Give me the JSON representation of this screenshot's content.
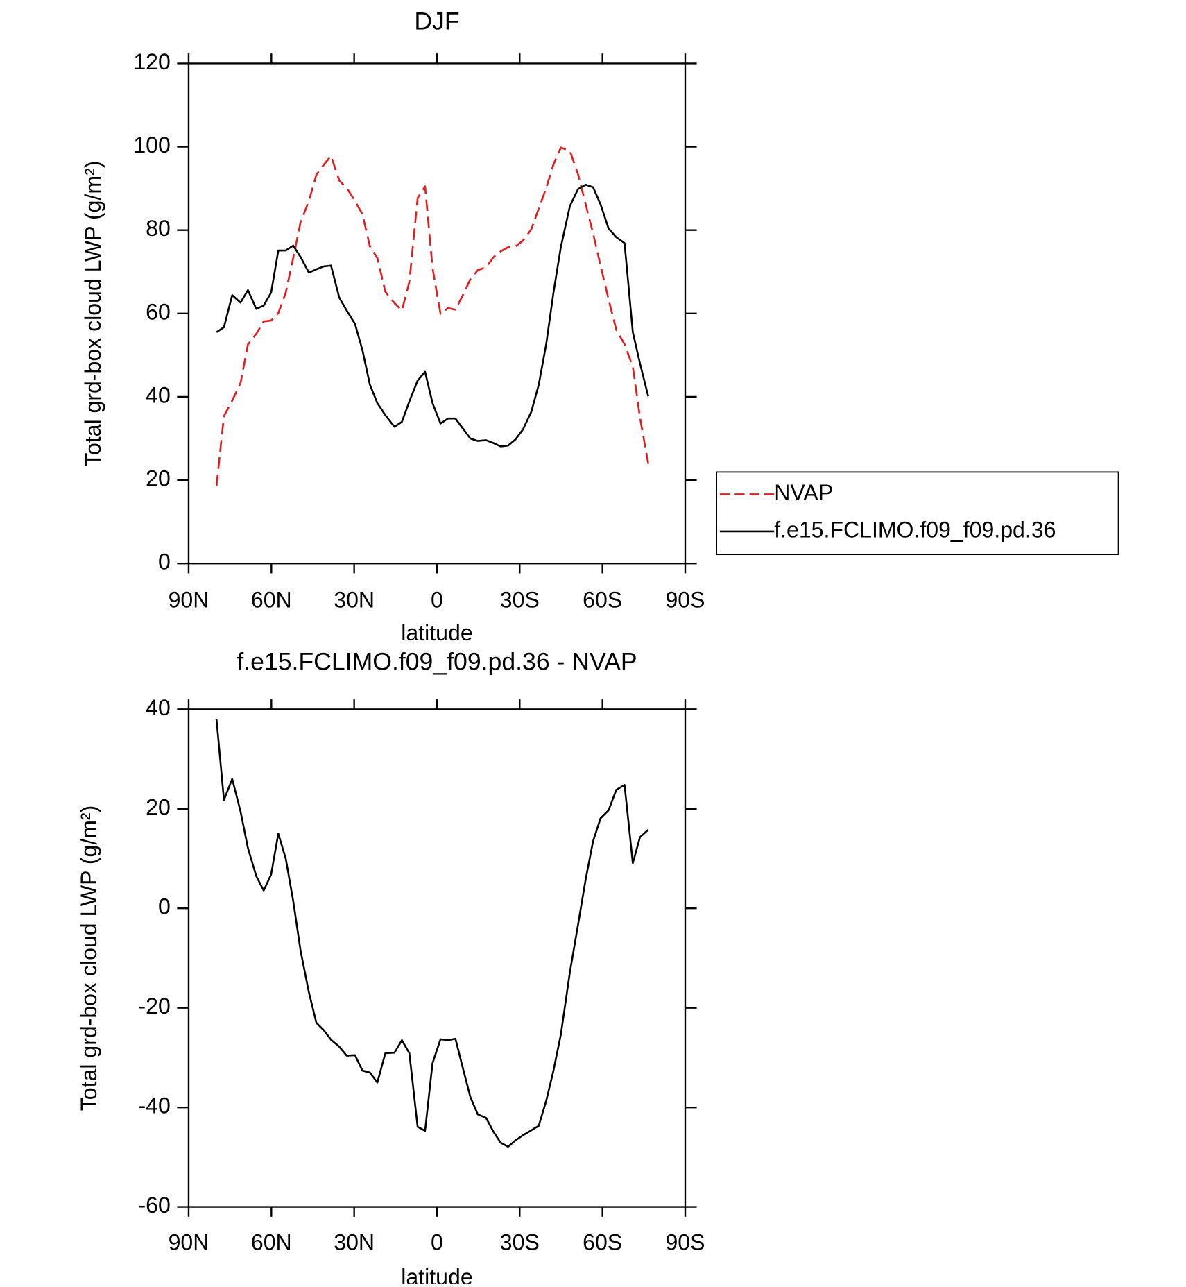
{
  "chart_data": [
    {
      "type": "line",
      "title": "DJF",
      "xlabel": "latitude",
      "ylabel": "Total grd-box cloud LWP (g/m²)",
      "x": [
        79.9,
        77.2,
        74.2,
        71.2,
        68.5,
        65.5,
        62.8,
        60.1,
        57.5,
        54.8,
        52.1,
        49.4,
        46.4,
        43.7,
        41,
        38.4,
        35.4,
        32.7,
        29.7,
        27,
        24.3,
        21.6,
        18.7,
        15.4,
        12.7,
        10,
        7,
        4.3,
        1.6,
        -1.3,
        -4,
        -6.7,
        -9.4,
        -12.1,
        -14.8,
        -17.8,
        -20.5,
        -23.1,
        -25.8,
        -28.5,
        -31.2,
        -34.2,
        -36.9,
        -39.6,
        -42.2,
        -44.9,
        -48.2,
        -51.2,
        -53.9,
        -56.6,
        -59.3,
        -62.2,
        -65,
        -68,
        -71,
        -73.6,
        -76.6
      ],
      "xlim": [
        90,
        -90
      ],
      "xticks": [
        {
          "value": 90,
          "label": "90N"
        },
        {
          "value": 60,
          "label": "60N"
        },
        {
          "value": 30,
          "label": "30N"
        },
        0,
        {
          "value": -30,
          "label": "30S"
        },
        {
          "value": -60,
          "label": "60S"
        },
        {
          "value": -90,
          "label": "90S"
        }
      ],
      "ylim": [
        0,
        120
      ],
      "yticks": [
        0,
        20,
        40,
        60,
        80,
        100,
        120
      ],
      "legend": "right",
      "series": [
        {
          "name": "NVAP",
          "color": "#e41a1c",
          "linestyle": "dashed",
          "values": [
            18.6,
            35.4,
            39.1,
            43.3,
            52.6,
            55.1,
            58.1,
            58.3,
            60.1,
            65,
            73.3,
            82,
            87,
            93.3,
            95.7,
            97.8,
            91.9,
            90.1,
            87,
            83.8,
            76.1,
            73.3,
            65.2,
            62.5,
            60.7,
            67.6,
            87.7,
            90.5,
            70.9,
            59.9,
            61.3,
            60.9,
            64.4,
            68.2,
            70.4,
            71.1,
            73.5,
            74.9,
            75.9,
            76.1,
            77.5,
            80.2,
            85.2,
            90.1,
            95.7,
            99.8,
            99,
            93.3,
            86.2,
            79.2,
            71.5,
            63.4,
            56.1,
            52.6,
            47.2,
            35,
            23.9
          ]
        },
        {
          "name": "f.e15.FCLIMO.f09_f09.pd.36",
          "color": "#000000",
          "linestyle": "solid",
          "values": [
            55.5,
            56.7,
            64.4,
            62.6,
            65.6,
            61.1,
            61.9,
            65,
            75.1,
            75.1,
            76.3,
            73.5,
            69.8,
            70.6,
            71.3,
            71.5,
            63.8,
            60.7,
            57.5,
            51.2,
            42.9,
            38.5,
            35.6,
            32.8,
            34,
            38.9,
            43.9,
            46,
            38.5,
            33.6,
            34.8,
            34.8,
            32.4,
            30,
            29.4,
            29.6,
            28.9,
            28.1,
            28.3,
            29.8,
            32.2,
            36.4,
            42.9,
            52.6,
            64.8,
            75.9,
            85.8,
            89.9,
            90.9,
            90.3,
            86.2,
            80.4,
            78.3,
            76.9,
            55.5,
            48,
            40.1
          ]
        }
      ]
    },
    {
      "type": "line",
      "title": "f.e15.FCLIMO.f09_f09.pd.36 - NVAP",
      "xlabel": "latitude",
      "ylabel": "Total grd-box cloud LWP (g/m²)",
      "x": [
        79.9,
        77.2,
        74.2,
        71.2,
        68.5,
        65.5,
        62.8,
        60.1,
        57.5,
        54.8,
        52.1,
        49.4,
        46.4,
        43.7,
        41,
        38.4,
        35.4,
        32.7,
        29.7,
        27,
        24.3,
        21.6,
        18.7,
        15.4,
        12.7,
        10,
        7,
        4.3,
        1.6,
        -1.3,
        -4,
        -6.7,
        -9.4,
        -12.1,
        -14.8,
        -17.8,
        -20.5,
        -23.1,
        -25.8,
        -28.5,
        -31.2,
        -34.2,
        -36.9,
        -39.6,
        -42.2,
        -44.9,
        -48.2,
        -51.2,
        -53.9,
        -56.6,
        -59.3,
        -62.2,
        -65,
        -68,
        -71,
        -73.6,
        -76.6
      ],
      "xlim": [
        90,
        -90
      ],
      "xticks": [
        {
          "value": 90,
          "label": "90N"
        },
        {
          "value": 60,
          "label": "60N"
        },
        {
          "value": 30,
          "label": "30N"
        },
        0,
        {
          "value": -30,
          "label": "30S"
        },
        {
          "value": -60,
          "label": "60S"
        },
        {
          "value": -90,
          "label": "90S"
        }
      ],
      "ylim": [
        -60,
        40
      ],
      "yticks": [
        -60,
        -40,
        -20,
        0,
        20,
        40
      ],
      "series": [
        {
          "color": "#000000",
          "linestyle": "solid",
          "values": [
            38,
            21.8,
            26,
            19.5,
            12.1,
            6.5,
            3.6,
            6.8,
            15,
            10,
            1.5,
            -8.6,
            -16.9,
            -23,
            -24.5,
            -26.4,
            -27.8,
            -29.6,
            -29.5,
            -32.6,
            -33,
            -35,
            -29.1,
            -29,
            -26.5,
            -29.1,
            -43.9,
            -44.7,
            -31.1,
            -26.3,
            -26.5,
            -26.2,
            -32.1,
            -37.9,
            -41.4,
            -42.1,
            -44.9,
            -47.1,
            -47.9,
            -46.6,
            -45.6,
            -44.6,
            -43.7,
            -38.7,
            -32.7,
            -25.4,
            -12.8,
            -3.1,
            5.8,
            13.5,
            18.1,
            19.7,
            23.8,
            24.8,
            9.1,
            14.3,
            15.8
          ]
        }
      ]
    }
  ]
}
